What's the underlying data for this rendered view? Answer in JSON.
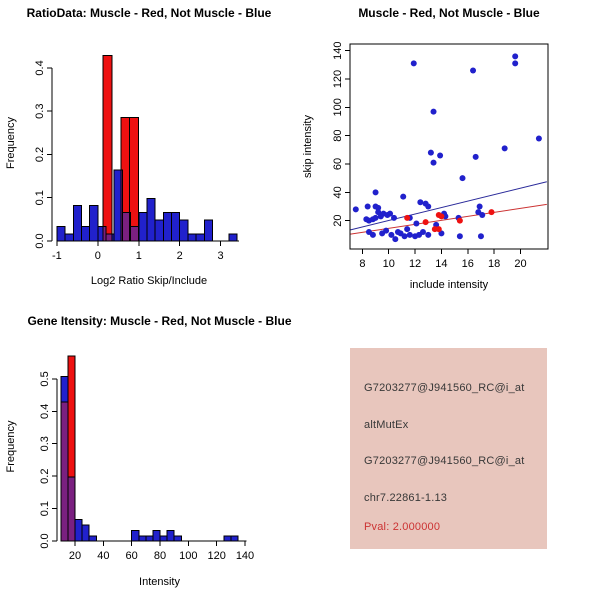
{
  "window": {
    "background": "#ffffff"
  },
  "colors": {
    "blue": "#2121cc",
    "red": "#ee1111",
    "purple": "#7a2080",
    "line_blue": "#2a2a9a",
    "line_red": "#cc3333",
    "axis": "#000000",
    "panel4_bg": "#e8c6bd",
    "panel4_text": "#383838",
    "panel4_pval": "#cc3333"
  },
  "chart_data": [
    {
      "id": "ratio-hist",
      "type": "bar",
      "subtype": "overlaid-histogram",
      "title": "RatioData: Muscle - Red, Not Muscle - Blue",
      "xlabel": "Log2 Ratio Skip/Include",
      "ylabel": "Frequency",
      "xlim": [
        -1.12,
        3.62
      ],
      "ylim": [
        0,
        0.453
      ],
      "xticks": [
        -1,
        0,
        1,
        2,
        3
      ],
      "yticks": [
        0.0,
        0.1,
        0.2,
        0.3,
        0.4
      ],
      "grid": false,
      "series": [
        {
          "name": "Not Muscle",
          "color": "blue",
          "bin_start": -1.0,
          "bin_width": 0.2,
          "freqs": [
            0.033,
            0.016,
            0.082,
            0.033,
            0.082,
            0.033,
            0.016,
            0.164,
            0.066,
            0.033,
            0.066,
            0.098,
            0.049,
            0.066,
            0.066,
            0.049,
            0.016,
            0.016,
            0.049,
            0,
            0,
            0.016
          ]
        },
        {
          "name": "Muscle",
          "color": "red",
          "bin_start": 0.13,
          "bin_width": 0.215,
          "freqs": [
            0.4286,
            0,
            0.2857,
            0.2857
          ]
        }
      ]
    },
    {
      "id": "scatter",
      "type": "scatter",
      "title": "Muscle - Red, Not Muscle - Blue",
      "xlabel": "include intensity",
      "ylabel": "skip intensity",
      "xlim": [
        7.06,
        22.09
      ],
      "ylim": [
        0,
        144.7
      ],
      "xticks": [
        8,
        10,
        12,
        14,
        16,
        18,
        20
      ],
      "yticks": [
        20,
        40,
        60,
        80,
        100,
        120,
        140
      ],
      "grid": false,
      "box": true,
      "series": [
        {
          "name": "Not Muscle",
          "color": "blue",
          "points": [
            [
              7.5,
              28
            ],
            [
              8.3,
              21
            ],
            [
              8.4,
              30
            ],
            [
              8.5,
              20
            ],
            [
              8.5,
              12
            ],
            [
              8.8,
              21
            ],
            [
              8.8,
              10
            ],
            [
              9.0,
              40
            ],
            [
              9.0,
              30
            ],
            [
              9.0,
              22
            ],
            [
              9.2,
              29
            ],
            [
              9.2,
              26
            ],
            [
              9.4,
              23
            ],
            [
              9.5,
              11
            ],
            [
              9.6,
              25
            ],
            [
              9.8,
              13
            ],
            [
              9.9,
              24
            ],
            [
              10.1,
              25
            ],
            [
              10.2,
              10
            ],
            [
              10.4,
              22
            ],
            [
              10.5,
              7
            ],
            [
              10.7,
              12
            ],
            [
              10.9,
              11
            ],
            [
              11.1,
              37
            ],
            [
              11.2,
              9
            ],
            [
              11.4,
              14
            ],
            [
              11.6,
              22
            ],
            [
              11.6,
              10
            ],
            [
              11.9,
              131
            ],
            [
              12.0,
              9
            ],
            [
              12.1,
              18
            ],
            [
              12.3,
              10
            ],
            [
              12.4,
              33
            ],
            [
              12.6,
              12
            ],
            [
              12.8,
              32
            ],
            [
              13.0,
              30
            ],
            [
              13.0,
              10
            ],
            [
              13.2,
              68
            ],
            [
              13.4,
              97
            ],
            [
              13.4,
              61
            ],
            [
              13.6,
              17
            ],
            [
              13.9,
              66
            ],
            [
              14.0,
              11
            ],
            [
              14.2,
              25
            ],
            [
              14.3,
              23
            ],
            [
              15.3,
              22
            ],
            [
              15.4,
              9
            ],
            [
              15.6,
              50
            ],
            [
              16.4,
              126
            ],
            [
              16.6,
              65
            ],
            [
              16.8,
              26
            ],
            [
              16.9,
              30
            ],
            [
              17.0,
              9
            ],
            [
              17.1,
              24
            ],
            [
              18.8,
              71
            ],
            [
              19.6,
              136
            ],
            [
              19.6,
              131
            ],
            [
              21.4,
              78
            ]
          ]
        },
        {
          "name": "Muscle",
          "color": "red",
          "points": [
            [
              11.4,
              22
            ],
            [
              12.8,
              19
            ],
            [
              13.5,
              14
            ],
            [
              13.8,
              14
            ],
            [
              13.8,
              24
            ],
            [
              14.0,
              23
            ],
            [
              15.4,
              20
            ],
            [
              17.8,
              26
            ]
          ]
        }
      ],
      "lines": [
        {
          "name": "not-muscle-fit",
          "color": "line_blue",
          "x1": 7.1,
          "y1": 13.5,
          "x2": 22.0,
          "y2": 47.5
        },
        {
          "name": "muscle-fit",
          "color": "line_red",
          "x1": 7.1,
          "y1": 10.5,
          "x2": 22.0,
          "y2": 31.5
        }
      ]
    },
    {
      "id": "gene-hist",
      "type": "bar",
      "subtype": "overlaid-histogram",
      "title": "Gene Itensity: Muscle - Red, Not Muscle - Blue",
      "xlabel": "Intensity",
      "ylabel": "Frequency",
      "xlim": [
        7.29,
        152
      ],
      "ylim": [
        0,
        0.583
      ],
      "xticks": [
        20,
        40,
        60,
        80,
        100,
        120,
        140
      ],
      "yticks": [
        0.0,
        0.1,
        0.2,
        0.3,
        0.4,
        0.5
      ],
      "grid": false,
      "series": [
        {
          "name": "Not Muscle",
          "color": "blue",
          "bin_start": 10,
          "bin_width": 5,
          "freqs": [
            0.508,
            0.197,
            0.066,
            0.049,
            0.016,
            0,
            0,
            0,
            0,
            0,
            0.033,
            0.016,
            0.016,
            0.033,
            0.016,
            0.033,
            0.016,
            0,
            0,
            0,
            0,
            0,
            0,
            0.016,
            0.016
          ]
        },
        {
          "name": "Muscle",
          "color": "red",
          "bin_start": 10,
          "bin_width": 5,
          "freqs": [
            0.4286,
            0.5714
          ]
        }
      ]
    }
  ],
  "info_panel": {
    "lines": [
      {
        "text": "G7203277@J941560_RC@i_at"
      },
      {
        "text": "altMutEx"
      },
      {
        "text": "G7203277@J941560_RC@i_at"
      },
      {
        "text": "chr7.22861-1.13"
      },
      {
        "text": "Pval: 2.000000"
      }
    ]
  }
}
